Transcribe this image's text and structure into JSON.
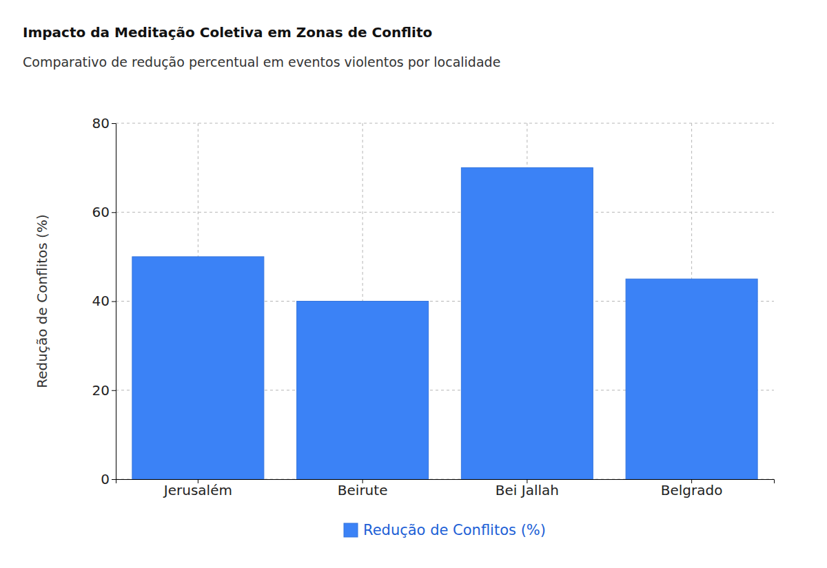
{
  "chart_data": {
    "type": "bar",
    "title": "Impacto da Meditação Coletiva em Zonas de Conflito",
    "subtitle": "Comparativo de redução percentual em eventos violentos por localidade",
    "y_label": "Redução de Conflitos (%)",
    "categories": [
      "Jerusalém",
      "Beirute",
      "Bei Jallah",
      "Belgrado"
    ],
    "series": [
      {
        "name": "Redução de Conflitos (%)",
        "color": "#3b82f6",
        "values": [
          50,
          40,
          70,
          45
        ]
      }
    ],
    "ylim": [
      0,
      80
    ],
    "yticks": [
      0,
      20,
      40,
      60,
      80
    ],
    "grid": true,
    "legend": "bottom"
  }
}
